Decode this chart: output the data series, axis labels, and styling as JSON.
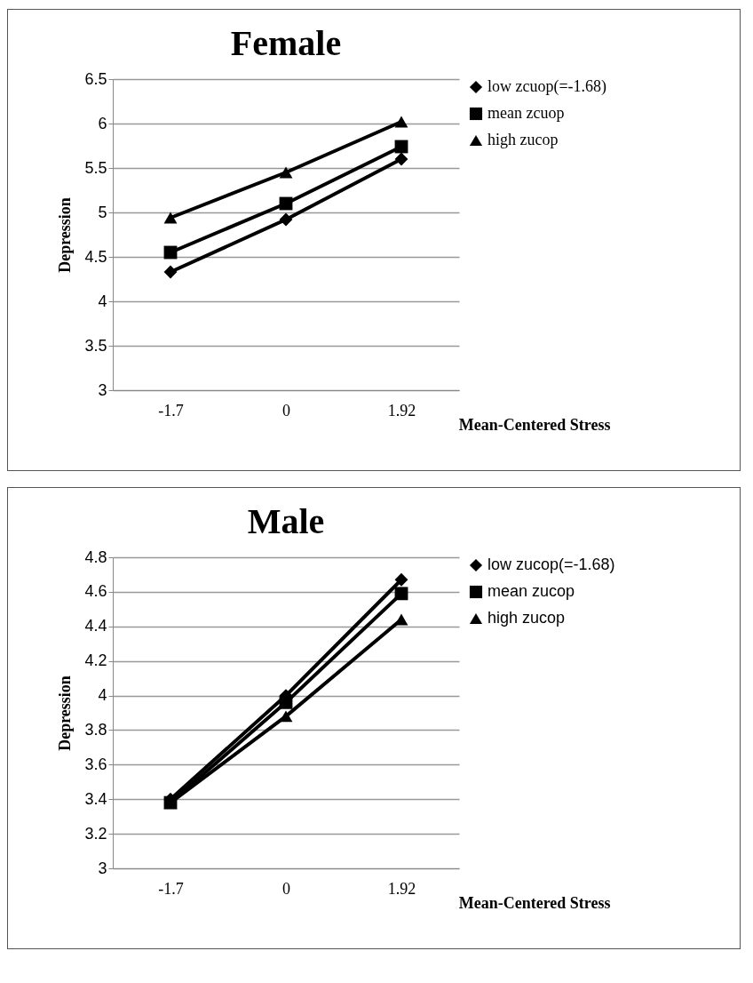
{
  "chart_data": [
    {
      "type": "line",
      "title": "Female",
      "xlabel": "Mean-Centered Stress",
      "ylabel": "Depression",
      "categories": [
        "-1.7",
        "0",
        "1.92"
      ],
      "ylim": [
        3,
        6.5
      ],
      "yticks": [
        3,
        3.5,
        4,
        4.5,
        5,
        5.5,
        6,
        6.5
      ],
      "grid": "y",
      "legend": "right",
      "line_style": "solid",
      "series": [
        {
          "name": "low zcuop(=-1.68)",
          "color": "#000000",
          "marker": "diamond",
          "values": [
            4.33,
            4.92,
            5.6
          ]
        },
        {
          "name": "mean zcuop",
          "color": "#000000",
          "marker": "square",
          "values": [
            4.55,
            5.1,
            5.74
          ]
        },
        {
          "name": "high zucop",
          "color": "#000000",
          "marker": "triangle",
          "values": [
            4.94,
            5.45,
            6.02
          ]
        }
      ]
    },
    {
      "type": "line",
      "title": "Male",
      "xlabel": "Mean-Centered Stress",
      "ylabel": "Depression",
      "categories": [
        "-1.7",
        "0",
        "1.92"
      ],
      "ylim": [
        3,
        4.8
      ],
      "yticks": [
        3,
        3.2,
        3.4,
        3.6,
        3.8,
        4,
        4.2,
        4.4,
        4.6,
        4.8
      ],
      "grid": "y",
      "legend": "right",
      "line_style": "solid",
      "series": [
        {
          "name": "low zucop(=-1.68)",
          "color": "#000000",
          "marker": "diamond",
          "values": [
            3.4,
            4.0,
            4.67
          ]
        },
        {
          "name": "mean zucop",
          "color": "#000000",
          "marker": "square",
          "values": [
            3.38,
            3.96,
            4.59
          ]
        },
        {
          "name": "high zucop",
          "color": "#000000",
          "marker": "triangle",
          "values": [
            3.38,
            3.88,
            4.44
          ]
        }
      ]
    }
  ]
}
